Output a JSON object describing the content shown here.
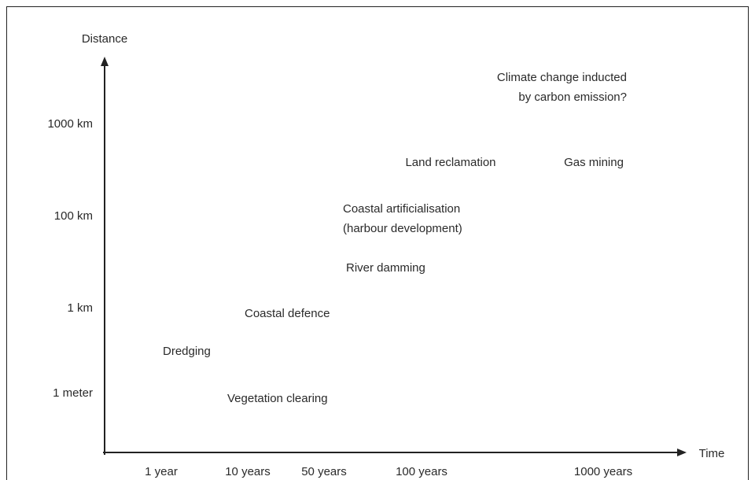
{
  "y_axis": {
    "label": "Distance",
    "ticks": [
      "1000 km",
      "100 km",
      "1 km",
      "1 meter"
    ]
  },
  "x_axis": {
    "label": "Time",
    "ticks": [
      "1 year",
      "10 years",
      "50 years",
      "100 years",
      "1000 years"
    ]
  },
  "items": [
    {
      "lines": [
        "Climate change inducted",
        "by carbon emission?"
      ]
    },
    {
      "lines": [
        "Land reclamation"
      ]
    },
    {
      "lines": [
        "Gas mining"
      ]
    },
    {
      "lines": [
        "Coastal artificialisation",
        "(harbour development)"
      ]
    },
    {
      "lines": [
        "River damming"
      ]
    },
    {
      "lines": [
        "Coastal defence"
      ]
    },
    {
      "lines": [
        "Dredging"
      ]
    },
    {
      "lines": [
        "Vegetation clearing"
      ]
    }
  ]
}
